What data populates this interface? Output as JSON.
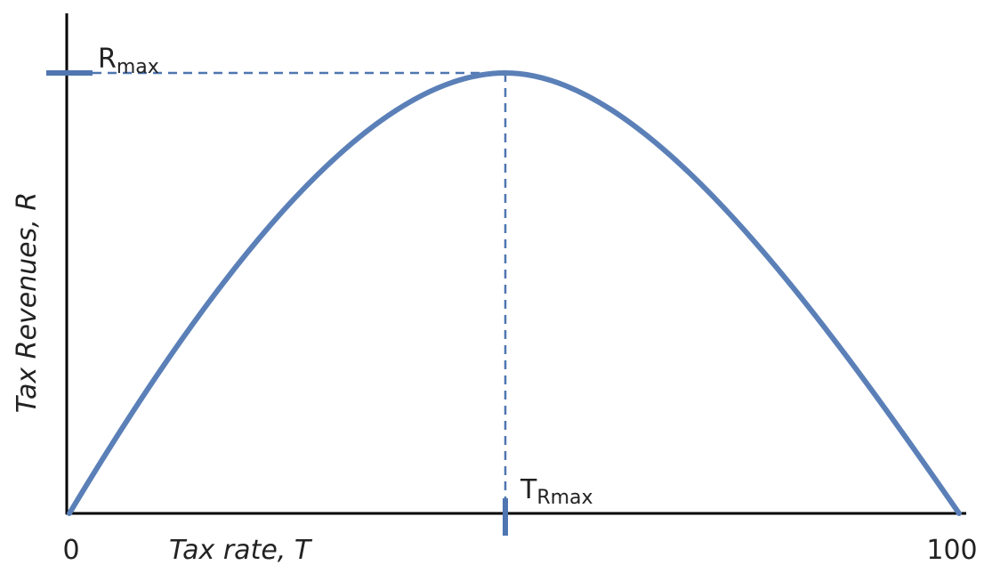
{
  "diagram": {
    "y_axis_label": "Tax Revenues, R",
    "x_axis_label": "Tax rate, T",
    "x_tick_labels": [
      "0",
      "100"
    ],
    "peak_revenue_label": {
      "base": "R",
      "sub": "max"
    },
    "peak_rate_label": {
      "base": "T",
      "sub": "Rmax"
    }
  }
}
